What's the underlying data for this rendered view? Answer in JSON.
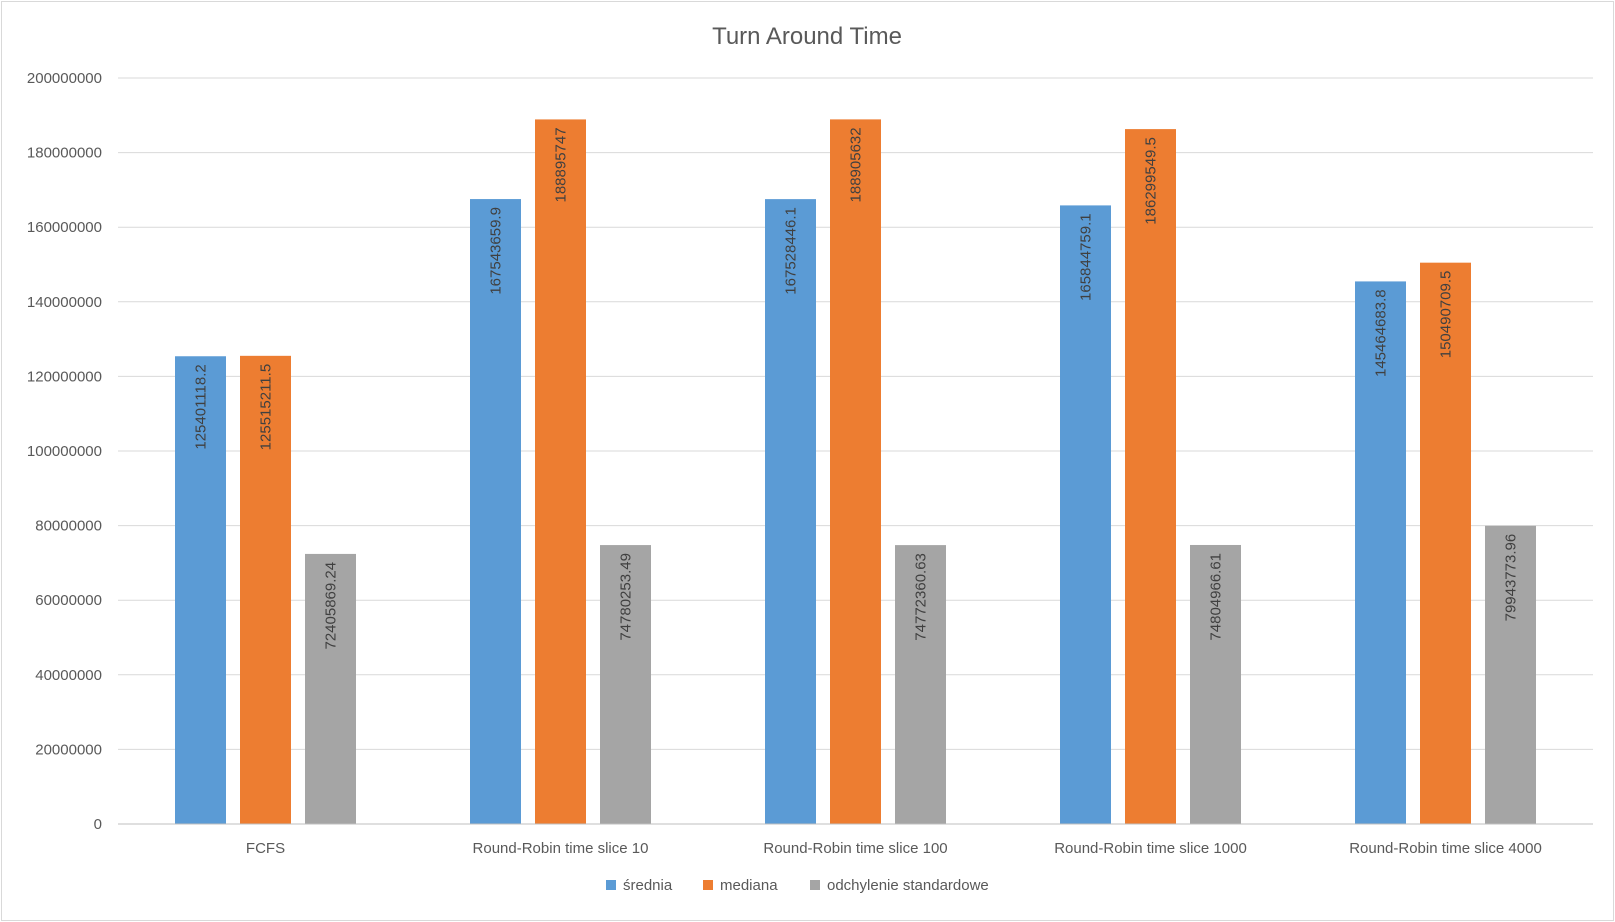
{
  "chart_data": {
    "type": "bar",
    "title": "Turn Around Time",
    "xlabel": "",
    "ylabel": "",
    "ylim": [
      0,
      200000000
    ],
    "y_ticks": [
      "0",
      "20000000",
      "40000000",
      "60000000",
      "80000000",
      "100000000",
      "120000000",
      "140000000",
      "160000000",
      "180000000",
      "200000000"
    ],
    "grid": true,
    "legend_position": "bottom",
    "categories": [
      "FCFS",
      "Round-Robin time slice 10",
      "Round-Robin time slice 100",
      "Round-Robin time slice 1000",
      "Round-Robin time slice 4000"
    ],
    "series": [
      {
        "name": "średnia",
        "color": "#5b9bd5",
        "values": [
          125401118.2,
          167543659.9,
          167528446.1,
          165844759.1,
          145464683.8
        ],
        "labels": [
          "125401118.2",
          "167543659.9",
          "167528446.1",
          "165844759.1",
          "145464683.8"
        ]
      },
      {
        "name": "mediana",
        "color": "#ed7d31",
        "values": [
          125515211.5,
          188895747,
          188905632,
          186299549.5,
          150490709.5
        ],
        "labels": [
          "125515211.5",
          "188895747",
          "188905632",
          "186299549.5",
          "150490709.5"
        ]
      },
      {
        "name": "odchylenie standardowe",
        "color": "#a5a5a5",
        "values": [
          72405869.24,
          74780253.49,
          74772360.63,
          74804966.61,
          79943773.96
        ],
        "labels": [
          "72405869.24",
          "74780253.49",
          "74772360.63",
          "74804966.61",
          "79943773.96"
        ]
      }
    ]
  }
}
